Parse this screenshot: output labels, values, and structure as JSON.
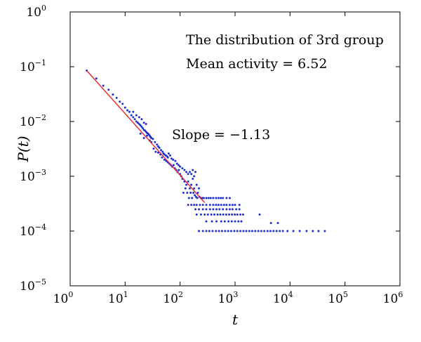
{
  "chart_data": {
    "type": "scatter",
    "title": "",
    "xlabel": "t",
    "ylabel": "P(t)",
    "xscale": "log",
    "yscale": "log",
    "xlim": [
      1,
      1000000
    ],
    "ylim": [
      1e-05,
      1
    ],
    "grid": false,
    "x_ticks": [
      {
        "base": "10",
        "exp": "0",
        "value": 1
      },
      {
        "base": "10",
        "exp": "1",
        "value": 10
      },
      {
        "base": "10",
        "exp": "2",
        "value": 100
      },
      {
        "base": "10",
        "exp": "3",
        "value": 1000
      },
      {
        "base": "10",
        "exp": "4",
        "value": 10000
      },
      {
        "base": "10",
        "exp": "5",
        "value": 100000
      },
      {
        "base": "10",
        "exp": "6",
        "value": 1000000
      }
    ],
    "y_ticks": [
      {
        "base": "10",
        "exp": "0",
        "value": 1
      },
      {
        "base": "10",
        "exp": "−1",
        "value": 0.1
      },
      {
        "base": "10",
        "exp": "−2",
        "value": 0.01
      },
      {
        "base": "10",
        "exp": "−3",
        "value": 0.001
      },
      {
        "base": "10",
        "exp": "−4",
        "value": 0.0001
      },
      {
        "base": "10",
        "exp": "−5",
        "value": 1e-05
      }
    ],
    "annotations": {
      "line1": "The distribution of 3rd group",
      "line2": "Mean activity = 6.52",
      "slope": "Slope = −1.13"
    },
    "colors": {
      "points": "#1f2fcf",
      "fit": "#e8202a"
    },
    "fit_line": {
      "slope": -1.13,
      "x": [
        2,
        280
      ],
      "y": [
        0.085,
        0.00033
      ]
    },
    "series": [
      {
        "values": [
          [
            2,
            0.085
          ],
          [
            3,
            0.061
          ],
          [
            4,
            0.045
          ],
          [
            5,
            0.038
          ],
          [
            6,
            0.031
          ],
          [
            7,
            0.027
          ],
          [
            8,
            0.023
          ],
          [
            9,
            0.021
          ],
          [
            10,
            0.018
          ],
          [
            11,
            0.016
          ],
          [
            12,
            0.015
          ],
          [
            13,
            0.013
          ],
          [
            14,
            0.012
          ],
          [
            15,
            0.011
          ],
          [
            16,
            0.01
          ],
          [
            17,
            0.0095
          ],
          [
            18,
            0.009
          ],
          [
            19,
            0.0085
          ],
          [
            20,
            0.008
          ],
          [
            21,
            0.0075
          ],
          [
            22,
            0.007
          ],
          [
            23,
            0.0068
          ],
          [
            24,
            0.0065
          ],
          [
            25,
            0.0062
          ],
          [
            26,
            0.006
          ],
          [
            27,
            0.0058
          ],
          [
            28,
            0.0055
          ],
          [
            29,
            0.0052
          ],
          [
            30,
            0.005
          ],
          [
            14,
            0.015
          ],
          [
            16,
            0.013
          ],
          [
            18,
            0.012
          ],
          [
            20,
            0.011
          ],
          [
            22,
            0.0095
          ],
          [
            24,
            0.009
          ],
          [
            19,
            0.006
          ],
          [
            22,
            0.005
          ],
          [
            25,
            0.0055
          ],
          [
            28,
            0.0045
          ],
          [
            30,
            0.0042
          ],
          [
            32,
            0.0048
          ],
          [
            35,
            0.0042
          ],
          [
            38,
            0.0038
          ],
          [
            40,
            0.0035
          ],
          [
            42,
            0.0033
          ],
          [
            45,
            0.003
          ],
          [
            48,
            0.0028
          ],
          [
            50,
            0.0026
          ],
          [
            52,
            0.0025
          ],
          [
            55,
            0.0024
          ],
          [
            58,
            0.0023
          ],
          [
            60,
            0.0022
          ],
          [
            33,
            0.0032
          ],
          [
            36,
            0.0028
          ],
          [
            40,
            0.0027
          ],
          [
            44,
            0.0025
          ],
          [
            47,
            0.0022
          ],
          [
            52,
            0.002
          ],
          [
            56,
            0.0019
          ],
          [
            60,
            0.0018
          ],
          [
            64,
            0.0017
          ],
          [
            68,
            0.0016
          ],
          [
            72,
            0.0015
          ],
          [
            76,
            0.0016
          ],
          [
            80,
            0.0014
          ],
          [
            85,
            0.0013
          ],
          [
            90,
            0.0012
          ],
          [
            95,
            0.0013
          ],
          [
            100,
            0.0011
          ],
          [
            105,
            0.001
          ],
          [
            62,
            0.0026
          ],
          [
            66,
            0.0024
          ],
          [
            70,
            0.0021
          ],
          [
            75,
            0.002
          ],
          [
            82,
            0.0019
          ],
          [
            88,
            0.0017
          ],
          [
            94,
            0.0016
          ],
          [
            100,
            0.0015
          ],
          [
            110,
            0.0014
          ],
          [
            120,
            0.0013
          ],
          [
            130,
            0.0012
          ],
          [
            140,
            0.0011
          ],
          [
            150,
            0.0012
          ],
          [
            160,
            0.0011
          ],
          [
            170,
            0.0013
          ],
          [
            180,
            0.001
          ],
          [
            190,
            0.0012
          ],
          [
            110,
            0.0009
          ],
          [
            120,
            0.0008
          ],
          [
            130,
            0.0007
          ],
          [
            140,
            0.0008
          ],
          [
            150,
            0.0006
          ],
          [
            160,
            0.0007
          ],
          [
            170,
            0.0009
          ],
          [
            180,
            0.0006
          ],
          [
            200,
            0.0007
          ],
          [
            220,
            0.0006
          ],
          [
            115,
            0.0005
          ],
          [
            125,
            0.0006
          ],
          [
            135,
            0.0005
          ],
          [
            145,
            0.0004
          ],
          [
            155,
            0.0005
          ],
          [
            165,
            0.0004
          ],
          [
            175,
            0.0005
          ],
          [
            185,
            0.00045
          ],
          [
            195,
            0.00042
          ],
          [
            205,
            0.0004
          ],
          [
            210,
            0.0005
          ],
          [
            225,
            0.00042
          ],
          [
            240,
            0.0004
          ],
          [
            255,
            0.0004
          ],
          [
            270,
            0.0004
          ],
          [
            300,
            0.0004
          ],
          [
            330,
            0.0004
          ],
          [
            360,
            0.0004
          ],
          [
            400,
            0.0004
          ],
          [
            450,
            0.0004
          ],
          [
            500,
            0.0004
          ],
          [
            550,
            0.0004
          ],
          [
            600,
            0.0004
          ],
          [
            700,
            0.0004
          ],
          [
            800,
            0.0004
          ],
          [
            140,
            0.0003
          ],
          [
            160,
            0.0003
          ],
          [
            180,
            0.0003
          ],
          [
            200,
            0.0003
          ],
          [
            230,
            0.0003
          ],
          [
            260,
            0.0003
          ],
          [
            300,
            0.0003
          ],
          [
            350,
            0.0003
          ],
          [
            400,
            0.0003
          ],
          [
            450,
            0.0003
          ],
          [
            500,
            0.0003
          ],
          [
            560,
            0.0003
          ],
          [
            630,
            0.0003
          ],
          [
            700,
            0.0003
          ],
          [
            800,
            0.0003
          ],
          [
            900,
            0.0003
          ],
          [
            1000,
            0.0003
          ],
          [
            1200,
            0.0003
          ],
          [
            190,
            0.00025
          ],
          [
            220,
            0.00025
          ],
          [
            260,
            0.00025
          ],
          [
            300,
            0.00025
          ],
          [
            350,
            0.00025
          ],
          [
            400,
            0.00025
          ],
          [
            460,
            0.00025
          ],
          [
            520,
            0.00025
          ],
          [
            600,
            0.00025
          ],
          [
            700,
            0.00025
          ],
          [
            800,
            0.00025
          ],
          [
            900,
            0.00025
          ],
          [
            1050,
            0.00025
          ],
          [
            1200,
            0.00025
          ],
          [
            200,
            0.0002
          ],
          [
            240,
            0.0002
          ],
          [
            280,
            0.0002
          ],
          [
            320,
            0.0002
          ],
          [
            370,
            0.0002
          ],
          [
            420,
            0.0002
          ],
          [
            480,
            0.0002
          ],
          [
            540,
            0.0002
          ],
          [
            610,
            0.0002
          ],
          [
            690,
            0.0002
          ],
          [
            780,
            0.0002
          ],
          [
            880,
            0.0002
          ],
          [
            990,
            0.0002
          ],
          [
            1100,
            0.0002
          ],
          [
            1250,
            0.0002
          ],
          [
            1400,
            0.0002
          ],
          [
            2800,
            0.0002
          ],
          [
            220,
            0.0001
          ],
          [
            260,
            0.0001
          ],
          [
            300,
            0.0001
          ],
          [
            340,
            0.0001
          ],
          [
            390,
            0.0001
          ],
          [
            450,
            0.0001
          ],
          [
            510,
            0.0001
          ],
          [
            580,
            0.0001
          ],
          [
            660,
            0.0001
          ],
          [
            750,
            0.0001
          ],
          [
            850,
            0.0001
          ],
          [
            970,
            0.0001
          ],
          [
            1100,
            0.0001
          ],
          [
            1250,
            0.0001
          ],
          [
            1420,
            0.0001
          ],
          [
            1600,
            0.0001
          ],
          [
            1820,
            0.0001
          ],
          [
            2050,
            0.0001
          ],
          [
            2330,
            0.0001
          ],
          [
            2650,
            0.0001
          ],
          [
            3000,
            0.0001
          ],
          [
            3400,
            0.0001
          ],
          [
            3900,
            0.0001
          ],
          [
            4400,
            0.0001
          ],
          [
            5000,
            0.0001
          ],
          [
            5700,
            0.0001
          ],
          [
            6500,
            0.0001
          ],
          [
            7400,
            0.0001
          ],
          [
            9000,
            0.0001
          ],
          [
            11500,
            0.0001
          ],
          [
            15000,
            0.0001
          ],
          [
            20000,
            0.0001
          ],
          [
            26000,
            0.0001
          ],
          [
            33000,
            0.0001
          ],
          [
            43000,
            0.0001
          ],
          [
            4500,
            0.00014
          ],
          [
            6000,
            0.00014
          ],
          [
            300,
            0.00015
          ],
          [
            380,
            0.00015
          ],
          [
            460,
            0.00015
          ],
          [
            560,
            0.00015
          ],
          [
            650,
            0.00015
          ],
          [
            760,
            0.00015
          ],
          [
            870,
            0.00015
          ],
          [
            1000,
            0.00015
          ],
          [
            1150,
            0.00015
          ],
          [
            1300,
            0.00015
          ]
        ]
      }
    ]
  }
}
